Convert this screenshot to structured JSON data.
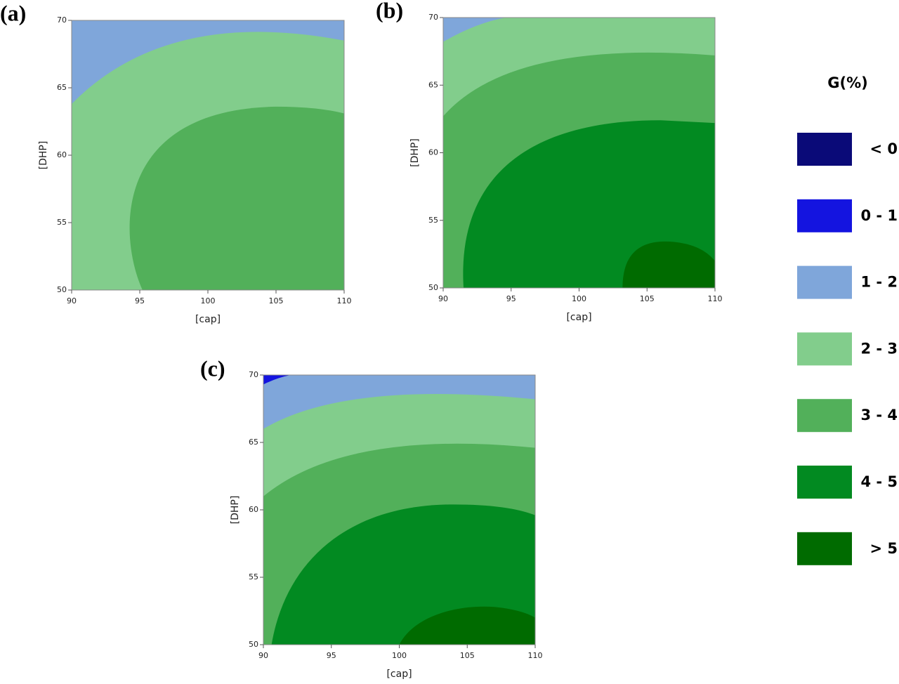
{
  "chart_data": [
    {
      "type": "contour",
      "label": "(a)",
      "xlabel": "[cap]",
      "ylabel": "[DHP]",
      "xlim": [
        90,
        110
      ],
      "ylim": [
        50,
        70
      ],
      "xticks": [
        90,
        95,
        100,
        105,
        110
      ],
      "yticks": [
        50,
        55,
        60,
        65,
        70
      ]
    },
    {
      "type": "contour",
      "label": "(b)",
      "xlabel": "[cap]",
      "ylabel": "[DHP]",
      "xlim": [
        90,
        110
      ],
      "ylim": [
        50,
        70
      ],
      "xticks": [
        90,
        95,
        100,
        105,
        110
      ],
      "yticks": [
        50,
        55,
        60,
        65,
        70
      ]
    },
    {
      "type": "contour",
      "label": "(c)",
      "xlabel": "[cap]",
      "ylabel": "[DHP]",
      "xlim": [
        90,
        110
      ],
      "ylim": [
        50,
        70
      ],
      "xticks": [
        90,
        95,
        100,
        105,
        110
      ],
      "yticks": [
        50,
        55,
        60,
        65,
        70
      ]
    }
  ],
  "legend": {
    "title": "G(%)",
    "items": [
      {
        "label": "< 0",
        "color": "#0a0a78"
      },
      {
        "label": "0 - 1",
        "color": "#1414e0"
      },
      {
        "label": "1 - 2",
        "color": "#7fa6da"
      },
      {
        "label": "2 - 3",
        "color": "#82cd8c"
      },
      {
        "label": "3 - 4",
        "color": "#52b05a"
      },
      {
        "label": "4 - 5",
        "color": "#028a21"
      },
      {
        "label": "> 5",
        "color": "#006b00"
      }
    ]
  }
}
